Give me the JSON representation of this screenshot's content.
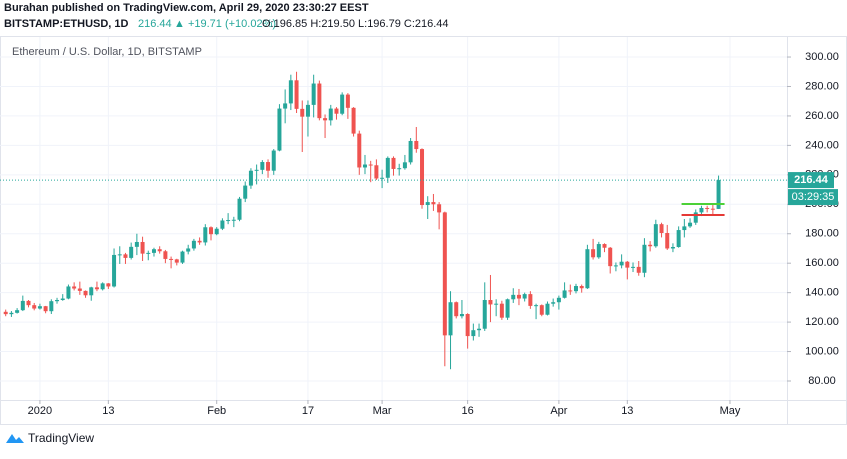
{
  "header": {
    "published": "Burahan published on TradingView.com, April 29, 2020 23:30:27 EEST",
    "symbol": "BITSTAMP:ETHUSD, 1D",
    "last": "216.44",
    "change": "▲ +19.71 (+10.02%)",
    "ohlc": "O:196.85 H:219.50 L:196.79 C:216.44"
  },
  "chart_data": {
    "type": "candlestick",
    "title": "Ethereum / U.S. Dollar, 1D, BITSTAMP",
    "up_color": "#26a69a",
    "down_color": "#ef5350",
    "grid": true,
    "x": [
      "2019-12-26",
      "2019-12-27",
      "2019-12-28",
      "2019-12-29",
      "2019-12-30",
      "2019-12-31",
      "2020-01-01",
      "2020-01-02",
      "2020-01-03",
      "2020-01-04",
      "2020-01-05",
      "2020-01-06",
      "2020-01-07",
      "2020-01-08",
      "2020-01-09",
      "2020-01-10",
      "2020-01-11",
      "2020-01-12",
      "2020-01-13",
      "2020-01-14",
      "2020-01-15",
      "2020-01-16",
      "2020-01-17",
      "2020-01-18",
      "2020-01-19",
      "2020-01-20",
      "2020-01-21",
      "2020-01-22",
      "2020-01-23",
      "2020-01-24",
      "2020-01-25",
      "2020-01-26",
      "2020-01-27",
      "2020-01-28",
      "2020-01-29",
      "2020-01-30",
      "2020-01-31",
      "2020-02-01",
      "2020-02-02",
      "2020-02-03",
      "2020-02-04",
      "2020-02-05",
      "2020-02-06",
      "2020-02-07",
      "2020-02-08",
      "2020-02-09",
      "2020-02-10",
      "2020-02-11",
      "2020-02-12",
      "2020-02-13",
      "2020-02-14",
      "2020-02-15",
      "2020-02-16",
      "2020-02-17",
      "2020-02-18",
      "2020-02-19",
      "2020-02-20",
      "2020-02-21",
      "2020-02-22",
      "2020-02-23",
      "2020-02-24",
      "2020-02-25",
      "2020-02-26",
      "2020-02-27",
      "2020-02-28",
      "2020-02-29",
      "2020-03-01",
      "2020-03-02",
      "2020-03-03",
      "2020-03-04",
      "2020-03-05",
      "2020-03-06",
      "2020-03-07",
      "2020-03-08",
      "2020-03-09",
      "2020-03-10",
      "2020-03-11",
      "2020-03-12",
      "2020-03-13",
      "2020-03-14",
      "2020-03-15",
      "2020-03-16",
      "2020-03-17",
      "2020-03-18",
      "2020-03-19",
      "2020-03-20",
      "2020-03-21",
      "2020-03-22",
      "2020-03-23",
      "2020-03-24",
      "2020-03-25",
      "2020-03-26",
      "2020-03-27",
      "2020-03-28",
      "2020-03-29",
      "2020-03-30",
      "2020-03-31",
      "2020-04-01",
      "2020-04-02",
      "2020-04-03",
      "2020-04-04",
      "2020-04-05",
      "2020-04-06",
      "2020-04-07",
      "2020-04-08",
      "2020-04-09",
      "2020-04-10",
      "2020-04-11",
      "2020-04-12",
      "2020-04-13",
      "2020-04-14",
      "2020-04-15",
      "2020-04-16",
      "2020-04-17",
      "2020-04-18",
      "2020-04-19",
      "2020-04-20",
      "2020-04-21",
      "2020-04-22",
      "2020-04-23",
      "2020-04-24",
      "2020-04-25",
      "2020-04-26",
      "2020-04-27",
      "2020-04-28",
      "2020-04-29"
    ],
    "open": [
      127.0,
      125.4,
      126.3,
      128.1,
      134.4,
      131.5,
      129.2,
      130.8,
      127.4,
      134.2,
      135.0,
      136.0,
      144.2,
      142.8,
      141.2,
      138.2,
      143.6,
      142.3,
      146.3,
      144.2,
      165.6,
      166.0,
      163.6,
      171.1,
      174.4,
      166.5,
      167.0,
      169.5,
      168.1,
      162.9,
      162.6,
      160.4,
      167.9,
      170.0,
      175.2,
      174.1,
      184.4,
      179.7,
      183.4,
      189.0,
      189.3,
      189.5,
      203.8,
      212.7,
      222.8,
      223.4,
      228.7,
      222.8,
      236.5,
      265.0,
      268.5,
      284.2,
      264.8,
      259.5,
      267.5,
      282.0,
      258.5,
      257.0,
      265.0,
      261.5,
      274.5,
      265.5,
      248.0,
      225.0,
      227.0,
      226.5,
      217.5,
      218.0,
      231.5,
      224.0,
      224.5,
      228.5,
      243.0,
      237.5,
      199.5,
      201.5,
      200.0,
      194.5,
      111.0,
      133.5,
      124.0,
      125.5,
      110.5,
      114.5,
      115.5,
      135.0,
      132.0,
      132.5,
      123.0,
      135.5,
      138.5,
      136.0,
      139.0,
      131.0,
      131.5,
      125.0,
      132.5,
      133.5,
      136.5,
      141.5,
      141.0,
      144.5,
      143.0,
      169.5,
      164.0,
      173.0,
      170.5,
      158.0,
      158.5,
      161.0,
      157.0,
      157.5,
      153.5,
      172.5,
      171.5,
      186.5,
      180.5,
      170.0,
      171.0,
      182.5,
      185.0,
      187.5,
      194.5,
      197.5,
      197.0,
      196.85
    ],
    "high": [
      128.5,
      127.5,
      129.5,
      138.0,
      135.0,
      133.0,
      132.5,
      131.0,
      135.5,
      136.5,
      139.0,
      145.5,
      147.0,
      147.5,
      141.5,
      144.0,
      147.5,
      147.0,
      146.5,
      170.0,
      171.5,
      167.0,
      174.0,
      180.0,
      178.0,
      168.5,
      170.5,
      171.5,
      169.0,
      164.5,
      163.0,
      168.5,
      172.5,
      176.5,
      177.5,
      186.5,
      185.0,
      184.5,
      190.5,
      194.0,
      191.5,
      205.0,
      215.5,
      224.5,
      227.0,
      230.0,
      230.5,
      237.5,
      268.0,
      278.0,
      288.0,
      290.0,
      270.5,
      270.5,
      288.0,
      284.0,
      261.0,
      267.5,
      266.0,
      276.0,
      275.5,
      266.0,
      250.0,
      233.5,
      229.5,
      230.5,
      223.5,
      232.5,
      232.5,
      227.5,
      233.5,
      245.0,
      252.5,
      238.0,
      205.5,
      207.0,
      201.5,
      195.0,
      141.0,
      134.0,
      135.0,
      126.0,
      119.0,
      119.0,
      147.0,
      152.0,
      135.5,
      134.5,
      136.0,
      143.0,
      142.5,
      140.0,
      141.0,
      132.5,
      132.0,
      134.0,
      136.0,
      138.0,
      147.0,
      145.5,
      146.0,
      145.5,
      172.5,
      176.5,
      174.5,
      173.5,
      171.0,
      160.5,
      166.0,
      161.5,
      160.5,
      161.5,
      177.0,
      175.0,
      189.5,
      187.5,
      186.0,
      173.5,
      185.0,
      190.0,
      190.5,
      196.5,
      199.0,
      199.0,
      199.5,
      219.5
    ],
    "low": [
      124.0,
      123.5,
      125.8,
      127.5,
      130.0,
      128.0,
      128.5,
      126.0,
      125.5,
      132.5,
      134.5,
      135.5,
      141.5,
      138.5,
      136.5,
      134.5,
      141.0,
      141.5,
      142.5,
      143.5,
      159.5,
      159.5,
      162.5,
      165.5,
      161.5,
      162.0,
      164.5,
      166.5,
      160.0,
      156.5,
      158.5,
      159.5,
      166.0,
      168.5,
      172.5,
      172.0,
      175.5,
      179.0,
      182.5,
      186.5,
      184.5,
      188.5,
      201.5,
      210.5,
      213.5,
      220.5,
      218.0,
      220.0,
      236.0,
      255.0,
      264.0,
      262.0,
      235.5,
      246.0,
      259.0,
      257.0,
      245.0,
      253.5,
      257.5,
      260.5,
      258.0,
      246.0,
      220.0,
      220.5,
      215.0,
      216.5,
      211.0,
      214.5,
      219.5,
      219.5,
      223.5,
      227.0,
      235.0,
      197.0,
      190.0,
      195.5,
      183.0,
      90.0,
      88.0,
      122.5,
      122.5,
      102.0,
      107.5,
      110.0,
      114.0,
      120.0,
      124.0,
      121.5,
      121.5,
      133.0,
      131.5,
      134.0,
      129.0,
      122.0,
      124.0,
      124.5,
      130.5,
      128.5,
      136.0,
      138.5,
      139.5,
      140.0,
      142.5,
      162.5,
      163.0,
      167.5,
      153.0,
      154.5,
      156.5,
      149.0,
      154.0,
      151.5,
      150.5,
      168.0,
      170.5,
      177.5,
      169.0,
      167.5,
      170.5,
      177.5,
      184.0,
      186.0,
      192.0,
      194.5,
      192.5,
      196.79
    ],
    "close": [
      125.4,
      126.3,
      128.1,
      134.4,
      131.5,
      129.2,
      130.8,
      127.4,
      134.2,
      135.0,
      136.0,
      144.2,
      142.8,
      141.2,
      138.2,
      143.6,
      142.3,
      146.3,
      144.2,
      165.6,
      166.0,
      163.6,
      171.1,
      174.4,
      166.5,
      167.0,
      169.5,
      168.1,
      162.9,
      162.6,
      160.4,
      167.9,
      170.0,
      175.2,
      174.1,
      184.4,
      179.7,
      183.4,
      189.0,
      189.3,
      189.5,
      203.8,
      212.7,
      222.8,
      223.4,
      228.7,
      222.8,
      236.5,
      265.0,
      268.5,
      284.2,
      264.8,
      259.5,
      267.5,
      282.0,
      258.5,
      257.0,
      265.0,
      261.5,
      274.5,
      265.5,
      248.0,
      225.0,
      227.0,
      226.5,
      217.5,
      218.0,
      231.5,
      224.0,
      224.5,
      228.5,
      243.0,
      237.5,
      199.5,
      201.5,
      200.0,
      194.5,
      111.0,
      133.5,
      124.0,
      125.5,
      110.5,
      114.5,
      115.5,
      135.0,
      132.0,
      132.5,
      123.0,
      135.5,
      138.5,
      136.0,
      139.0,
      131.0,
      131.5,
      125.0,
      132.5,
      133.5,
      136.5,
      141.5,
      141.0,
      144.5,
      143.0,
      169.5,
      164.0,
      173.0,
      170.5,
      158.0,
      158.5,
      161.0,
      157.0,
      157.5,
      153.5,
      172.5,
      171.5,
      186.5,
      180.5,
      170.0,
      171.0,
      182.5,
      185.0,
      187.5,
      194.5,
      197.5,
      197.0,
      196.73,
      216.44
    ],
    "levels": [
      {
        "value": 200.2,
        "color": "#4cd137"
      },
      {
        "value": 192.7,
        "color": "#e53935"
      }
    ],
    "last_label": "216.44",
    "countdown": "03:29:35",
    "xlim": [
      "2019-12-25",
      "2020-05-11"
    ],
    "xticks": [
      {
        "value": "2020-01-01",
        "label": "2020"
      },
      {
        "value": "2020-01-13",
        "label": "13"
      },
      {
        "value": "2020-02-01",
        "label": "Feb"
      },
      {
        "value": "2020-02-17",
        "label": "17"
      },
      {
        "value": "2020-03-01",
        "label": "Mar"
      },
      {
        "value": "2020-03-16",
        "label": "16"
      },
      {
        "value": "2020-04-01",
        "label": "Apr"
      },
      {
        "value": "2020-04-13",
        "label": "13"
      },
      {
        "value": "2020-05-01",
        "label": "May"
      }
    ],
    "ylim": [
      67.1,
      313.6
    ],
    "yticks": [
      {
        "value": 80,
        "label": "80.00"
      },
      {
        "value": 100,
        "label": "100.00"
      },
      {
        "value": 120,
        "label": "120.00"
      },
      {
        "value": 140,
        "label": "140.00"
      },
      {
        "value": 160,
        "label": "160.00"
      },
      {
        "value": 180,
        "label": "180.00"
      },
      {
        "value": 200,
        "label": "200.00"
      },
      {
        "value": 220,
        "label": "220.00"
      },
      {
        "value": 240,
        "label": "240.00"
      },
      {
        "value": 260,
        "label": "260.00"
      },
      {
        "value": 280,
        "label": "280.00"
      },
      {
        "value": 300,
        "label": "300.00"
      }
    ]
  },
  "footer": {
    "brand": "TradingView"
  }
}
